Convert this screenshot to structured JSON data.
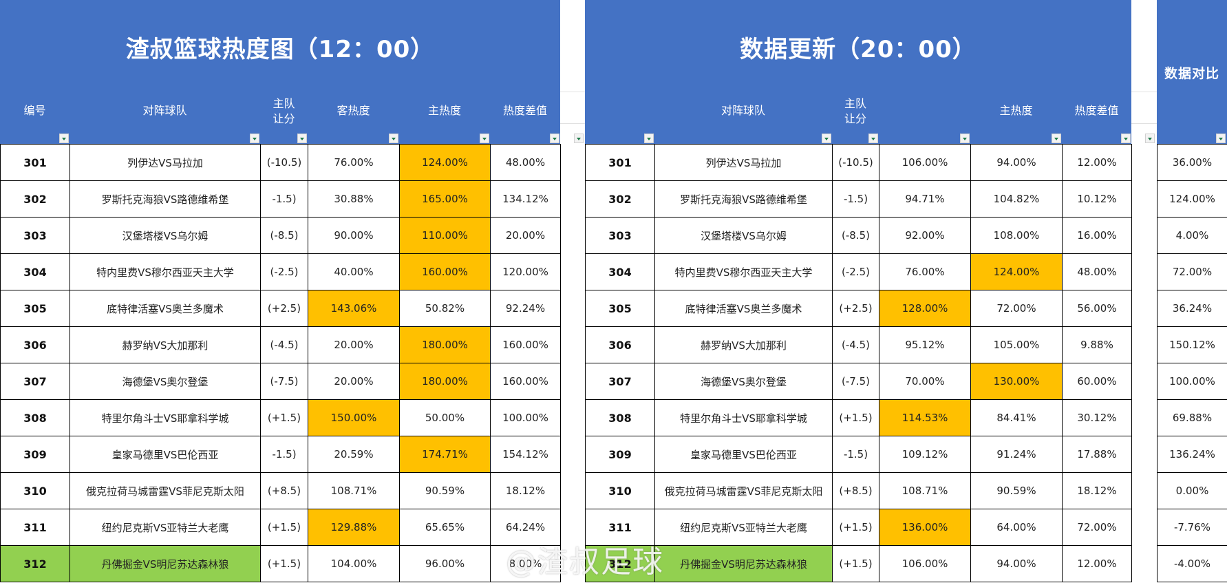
{
  "left": {
    "title": "渣叔篮球热度图（12：00）",
    "headers": {
      "id": "编号",
      "match": "对阵球队",
      "handicap_1": "主队",
      "handicap_2": "让分",
      "away_heat": "客热度",
      "home_heat": "主热度",
      "diff": "热度差值"
    },
    "rows": [
      {
        "id": "301",
        "match": "列伊达VS马拉加",
        "handicap": "(-10.5)",
        "away": "76.00%",
        "home": "124.00%",
        "diff": "48.00%",
        "hl": "home"
      },
      {
        "id": "302",
        "match": "罗斯托克海狼VS路德维希堡",
        "handicap": "-1.5)",
        "away": "30.88%",
        "home": "165.00%",
        "diff": "134.12%",
        "hl": "home"
      },
      {
        "id": "303",
        "match": "汉堡塔楼VS乌尔姆",
        "handicap": "(-8.5)",
        "away": "90.00%",
        "home": "110.00%",
        "diff": "20.00%",
        "hl": "home"
      },
      {
        "id": "304",
        "match": "特内里费VS穆尔西亚天主大学",
        "handicap": "(-2.5)",
        "away": "40.00%",
        "home": "160.00%",
        "diff": "120.00%",
        "hl": "home"
      },
      {
        "id": "305",
        "match": "底特律活塞VS奥兰多魔术",
        "handicap": "(+2.5)",
        "away": "143.06%",
        "home": "50.82%",
        "diff": "92.24%",
        "hl": "away"
      },
      {
        "id": "306",
        "match": "赫罗纳VS大加那利",
        "handicap": "(-4.5)",
        "away": "20.00%",
        "home": "180.00%",
        "diff": "160.00%",
        "hl": "home"
      },
      {
        "id": "307",
        "match": "海德堡VS奥尔登堡",
        "handicap": "(-7.5)",
        "away": "20.00%",
        "home": "180.00%",
        "diff": "160.00%",
        "hl": "home"
      },
      {
        "id": "308",
        "match": "特里尔角斗士VS耶拿科学城",
        "handicap": "(+1.5)",
        "away": "150.00%",
        "home": "50.00%",
        "diff": "100.00%",
        "hl": "away"
      },
      {
        "id": "309",
        "match": "皇家马德里VS巴伦西亚",
        "handicap": "-1.5)",
        "away": "20.59%",
        "home": "174.71%",
        "diff": "154.12%",
        "hl": "home"
      },
      {
        "id": "310",
        "match": "俄克拉荷马城雷霆VS菲尼克斯太阳",
        "handicap": "(+8.5)",
        "away": "108.71%",
        "home": "90.59%",
        "diff": "18.12%",
        "hl": ""
      },
      {
        "id": "311",
        "match": "纽约尼克斯VS亚特兰大老鹰",
        "handicap": "(+1.5)",
        "away": "129.88%",
        "home": "65.65%",
        "diff": "64.24%",
        "hl": "away"
      },
      {
        "id": "312",
        "match": "丹佛掘金VS明尼苏达森林狼",
        "handicap": "(+1.5)",
        "away": "104.00%",
        "home": "96.00%",
        "diff": "8.00%",
        "hl": "green"
      }
    ]
  },
  "middle": {
    "title": "数据更新（20：00）",
    "headers": {
      "id": "",
      "match": "对阵球队",
      "handicap_1": "主队",
      "handicap_2": "让分",
      "away_heat": "",
      "home_heat": "主热度",
      "diff": "热度差值"
    },
    "rows": [
      {
        "id": "301",
        "match": "列伊达VS马拉加",
        "handicap": "(-10.5)",
        "away": "106.00%",
        "home": "94.00%",
        "diff": "12.00%",
        "hl": ""
      },
      {
        "id": "302",
        "match": "罗斯托克海狼VS路德维希堡",
        "handicap": "-1.5)",
        "away": "94.71%",
        "home": "104.82%",
        "diff": "10.12%",
        "hl": ""
      },
      {
        "id": "303",
        "match": "汉堡塔楼VS乌尔姆",
        "handicap": "(-8.5)",
        "away": "92.00%",
        "home": "108.00%",
        "diff": "16.00%",
        "hl": ""
      },
      {
        "id": "304",
        "match": "特内里费VS穆尔西亚天主大学",
        "handicap": "(-2.5)",
        "away": "76.00%",
        "home": "124.00%",
        "diff": "48.00%",
        "hl": "home"
      },
      {
        "id": "305",
        "match": "底特律活塞VS奥兰多魔术",
        "handicap": "(+2.5)",
        "away": "128.00%",
        "home": "72.00%",
        "diff": "56.00%",
        "hl": "away"
      },
      {
        "id": "306",
        "match": "赫罗纳VS大加那利",
        "handicap": "(-4.5)",
        "away": "95.12%",
        "home": "105.00%",
        "diff": "9.88%",
        "hl": ""
      },
      {
        "id": "307",
        "match": "海德堡VS奥尔登堡",
        "handicap": "(-7.5)",
        "away": "70.00%",
        "home": "130.00%",
        "diff": "60.00%",
        "hl": "home"
      },
      {
        "id": "308",
        "match": "特里尔角斗士VS耶拿科学城",
        "handicap": "(+1.5)",
        "away": "114.53%",
        "home": "84.41%",
        "diff": "30.12%",
        "hl": "away"
      },
      {
        "id": "309",
        "match": "皇家马德里VS巴伦西亚",
        "handicap": "-1.5)",
        "away": "109.12%",
        "home": "91.24%",
        "diff": "17.88%",
        "hl": ""
      },
      {
        "id": "310",
        "match": "俄克拉荷马城雷霆VS菲尼克斯太阳",
        "handicap": "(+8.5)",
        "away": "108.71%",
        "home": "90.59%",
        "diff": "18.12%",
        "hl": ""
      },
      {
        "id": "311",
        "match": "纽约尼克斯VS亚特兰大老鹰",
        "handicap": "(+1.5)",
        "away": "136.00%",
        "home": "64.00%",
        "diff": "72.00%",
        "hl": "away"
      },
      {
        "id": "312",
        "match": "丹佛掘金VS明尼苏达森林狼",
        "handicap": "(+1.5)",
        "away": "106.00%",
        "home": "94.00%",
        "diff": "12.00%",
        "hl": "green"
      }
    ]
  },
  "compare": {
    "title": "数据对比",
    "values": [
      "36.00%",
      "124.00%",
      "4.00%",
      "72.00%",
      "36.24%",
      "150.12%",
      "100.00%",
      "69.88%",
      "136.24%",
      "0.00%",
      "-7.76%",
      "-4.00%"
    ]
  },
  "watermark": "@渣叔足球",
  "colors": {
    "header_blue": "#4472C4",
    "highlight_orange": "#FFC000",
    "highlight_green": "#92D050"
  }
}
